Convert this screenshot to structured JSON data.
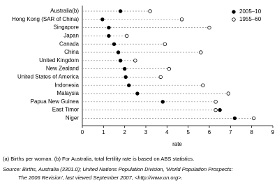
{
  "chart_data": {
    "type": "dot",
    "categories": [
      "Australia(b)",
      "Hong Kong (SAR of China)",
      "Singapore",
      "Japan",
      "Canada",
      "China",
      "United Kingdom",
      "New Zealand",
      "United States of America",
      "Indonesia",
      "Malaysia",
      "Papua New Guinea",
      "East Timor",
      "Niger"
    ],
    "series": [
      {
        "name": "2005–10",
        "color": "#000000",
        "marker": "filled",
        "values": [
          1.8,
          0.95,
          1.25,
          1.25,
          1.5,
          1.7,
          1.8,
          2.0,
          2.05,
          2.2,
          2.6,
          3.8,
          6.5,
          7.2
        ]
      },
      {
        "name": "1955–60",
        "color": "#000000",
        "marker": "open",
        "values": [
          3.2,
          4.7,
          6.0,
          2.1,
          3.9,
          5.6,
          2.5,
          4.1,
          3.7,
          5.7,
          6.9,
          6.3,
          6.3,
          8.1
        ]
      }
    ],
    "xlim": [
      0,
      9
    ],
    "xticks": [
      0,
      1,
      2,
      3,
      4,
      5,
      6,
      7,
      8,
      9
    ],
    "xlabel": "rate",
    "legend": "top-right",
    "footnote": "(a) Births per woman. (b) For Australia, total fertility rate is based on ABS statistics.",
    "source": [
      "Source: Births, Australia (3301.0); United Nations Population Division, 'World Population Prospects:",
      "The 2006 Revision', last viewed September 2007, <http://www.un.org>."
    ]
  }
}
